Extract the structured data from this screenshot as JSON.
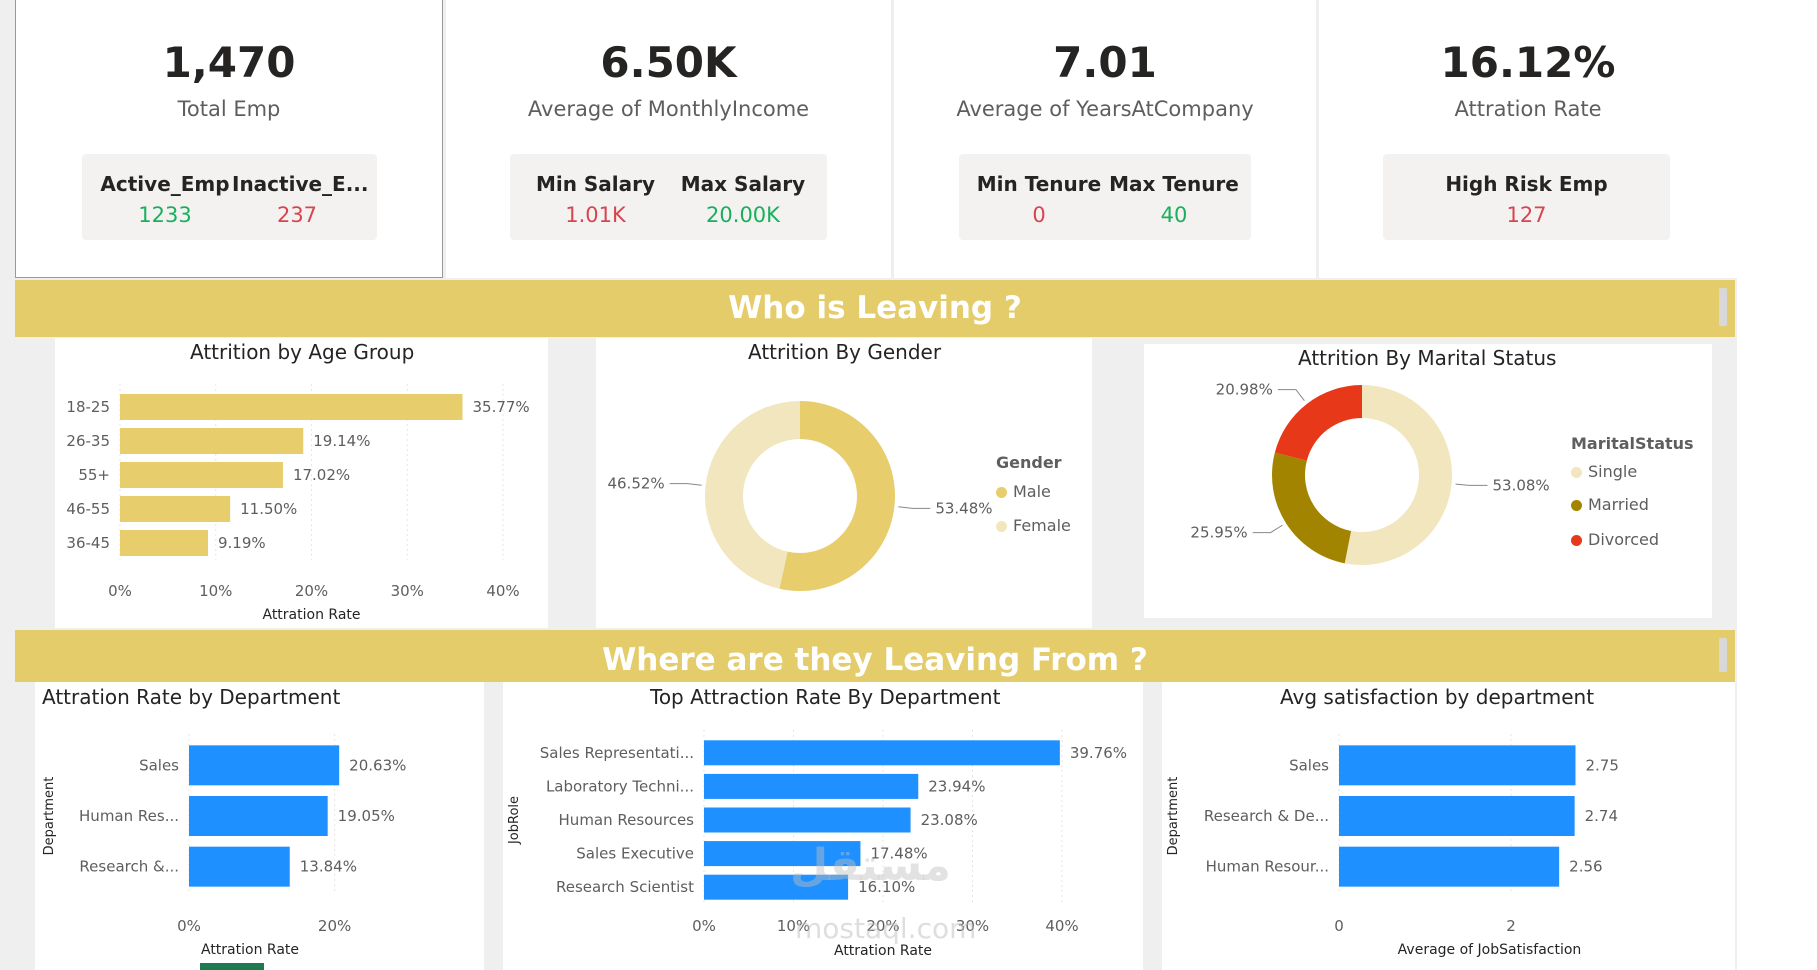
{
  "colors": {
    "gold": "#e5cc6a",
    "bar_gold": "#e7cd6c",
    "blue": "#1e90ff",
    "green": "#1aaf5d",
    "red": "#d64550",
    "pale": "#f1e6bd",
    "olive": "#a38400",
    "divorced_red": "#e8381a"
  },
  "kpis": {
    "total_emp": {
      "value": "1,470",
      "label": "Total Emp",
      "sub": [
        {
          "label": "Active_Emp",
          "value": "1233",
          "color": "green"
        },
        {
          "label": "Inactive_E...",
          "value": "237",
          "color": "red"
        }
      ]
    },
    "income": {
      "value": "6.50K",
      "label": "Average of MonthlyIncome",
      "sub": [
        {
          "label": "Min Salary",
          "value": "1.01K",
          "color": "red"
        },
        {
          "label": "Max Salary",
          "value": "20.00K",
          "color": "green"
        }
      ]
    },
    "tenure": {
      "value": "7.01",
      "label": "Average of YearsAtCompany",
      "sub": [
        {
          "label": "Min Tenure",
          "value": "0",
          "color": "red"
        },
        {
          "label": "Max Tenure",
          "value": "40",
          "color": "green"
        }
      ]
    },
    "attrition": {
      "value": "16.12%",
      "label": "Attration Rate",
      "sub": [
        {
          "label": "High Risk Emp",
          "value": "127",
          "color": "red"
        }
      ]
    }
  },
  "banners": {
    "who": "Who is Leaving ?",
    "where": "Where are they Leaving From ?"
  },
  "watermark": {
    "arabic": "مستقل",
    "latin": "mostaql.com"
  },
  "chart_data": [
    {
      "id": "age",
      "type": "bar",
      "orientation": "horizontal",
      "title": "Attrition by Age Group",
      "xlabel": "Attration Rate",
      "ylabel": "",
      "categories": [
        "18-25",
        "26-35",
        "55+",
        "46-55",
        "36-45"
      ],
      "values": [
        35.77,
        19.14,
        17.02,
        11.5,
        9.19
      ],
      "value_labels": [
        "35.77%",
        "19.14%",
        "17.02%",
        "11.50%",
        "9.19%"
      ],
      "xlim": [
        0,
        40
      ],
      "xticks": [
        "0%",
        "10%",
        "20%",
        "30%",
        "40%"
      ],
      "grid": true
    },
    {
      "id": "gender",
      "type": "pie",
      "donut": true,
      "title": "Attrition By Gender",
      "legend_title": "Gender",
      "legend_position": "right",
      "categories": [
        "Male",
        "Female"
      ],
      "values": [
        53.48,
        46.52
      ],
      "value_labels": [
        "53.48%",
        "46.52%"
      ],
      "colors": [
        "#e7cd6c",
        "#f1e6bd"
      ]
    },
    {
      "id": "marital",
      "type": "pie",
      "donut": true,
      "title": "Attrition By Marital Status",
      "legend_title": "MaritalStatus",
      "legend_position": "right",
      "categories": [
        "Single",
        "Married",
        "Divorced"
      ],
      "values": [
        53.08,
        25.95,
        20.98
      ],
      "value_labels": [
        "53.08%",
        "25.95%",
        "20.98%"
      ],
      "colors": [
        "#f1e6bd",
        "#a38400",
        "#e8381a"
      ]
    },
    {
      "id": "dept",
      "type": "bar",
      "orientation": "horizontal",
      "title": "Attration Rate by Department",
      "xlabel": "Attration Rate",
      "ylabel": "Department",
      "categories": [
        "Sales",
        "Human Res...",
        "Research &..."
      ],
      "values": [
        20.63,
        19.05,
        13.84
      ],
      "value_labels": [
        "20.63%",
        "19.05%",
        "13.84%"
      ],
      "xlim": [
        0,
        25
      ],
      "xticks": [
        "0%",
        "20%"
      ],
      "grid": true
    },
    {
      "id": "role",
      "type": "bar",
      "orientation": "horizontal",
      "title": "Top Attraction Rate By Department",
      "xlabel": "Attration Rate",
      "ylabel": "JobRole",
      "categories": [
        "Sales Representati...",
        "Laboratory Techni...",
        "Human Resources",
        "Sales Executive",
        "Research Scientist"
      ],
      "values": [
        39.76,
        23.94,
        23.08,
        17.48,
        16.1
      ],
      "value_labels": [
        "39.76%",
        "23.94%",
        "23.08%",
        "17.48%",
        "16.10%"
      ],
      "xlim": [
        0,
        40
      ],
      "xticks": [
        "0%",
        "10%",
        "20%",
        "30%",
        "40%"
      ],
      "grid": true
    },
    {
      "id": "sat",
      "type": "bar",
      "orientation": "horizontal",
      "title": "Avg satisfaction by department",
      "xlabel": "Average of JobSatisfaction",
      "ylabel": "Department",
      "categories": [
        "Sales",
        "Research & De...",
        "Human Resour..."
      ],
      "values": [
        2.75,
        2.74,
        2.56
      ],
      "value_labels": [
        "2.75",
        "2.74",
        "2.56"
      ],
      "xlim": [
        0,
        3.5
      ],
      "xticks": [
        "0",
        "2"
      ],
      "grid": true
    }
  ]
}
